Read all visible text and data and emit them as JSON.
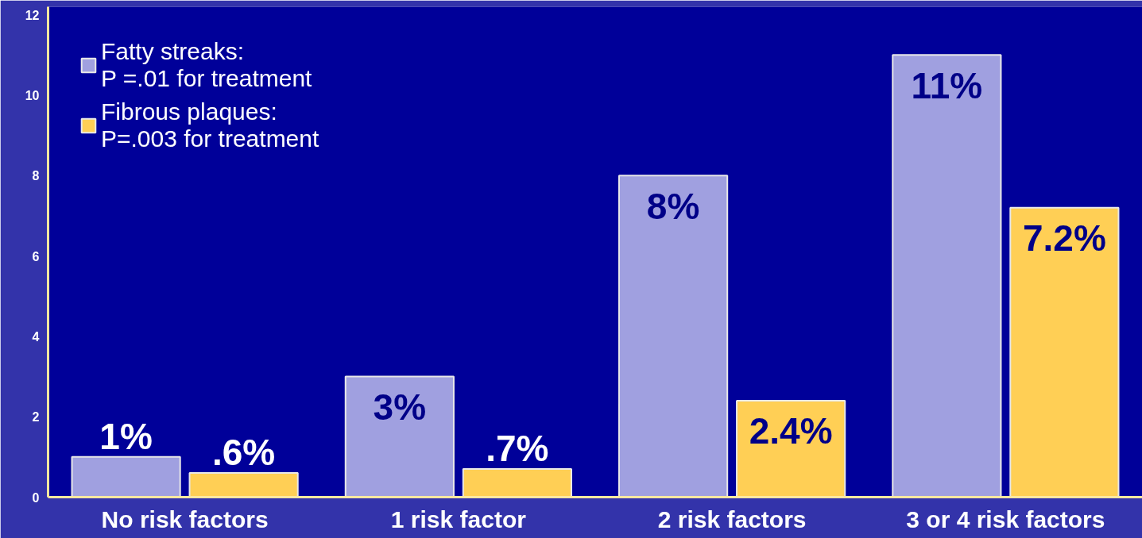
{
  "chart_data": {
    "type": "bar",
    "categories": [
      "No risk factors",
      "1 risk factor",
      "2 risk factors",
      "3 or 4 risk factors"
    ],
    "series": [
      {
        "name": "Fatty streaks:\nP =.01 for treatment",
        "color": "#a0a0e0",
        "values": [
          1,
          3,
          8,
          11
        ],
        "value_labels": [
          "1%",
          "3%",
          "8%",
          "11%"
        ]
      },
      {
        "name": "Fibrous plaques:\nP=.003 for treatment",
        "color": "#ffcf55",
        "values": [
          0.6,
          0.7,
          2.4,
          7.2
        ],
        "value_labels": [
          ".6%",
          ".7%",
          "2.4%",
          "7.2%"
        ]
      }
    ],
    "ylim": [
      0,
      12.2
    ],
    "yticks": [
      0,
      2,
      4,
      6,
      8,
      10,
      12
    ],
    "grid": false,
    "legend": "top left"
  }
}
